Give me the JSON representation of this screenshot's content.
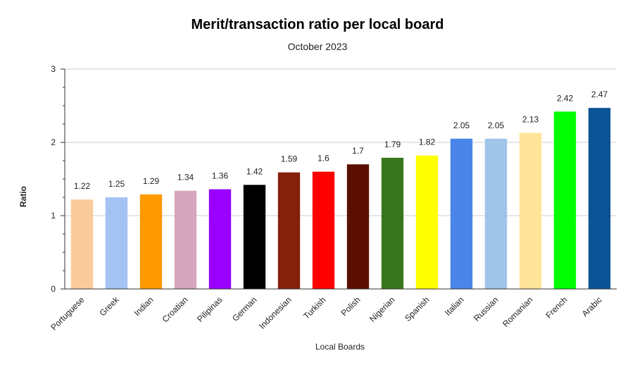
{
  "chart_data": {
    "type": "bar",
    "title": "Merit/transaction ratio per local board",
    "subtitle": "October 2023",
    "xlabel": "Local Boards",
    "ylabel": "Ratio",
    "ylim": [
      0,
      3
    ],
    "yticks": [
      0,
      1,
      2,
      3
    ],
    "grid": true,
    "categories": [
      "Portuguese",
      "Greek",
      "Indian",
      "Croatian",
      "Pilipinas",
      "German",
      "Indonesian",
      "Turkish",
      "Polish",
      "Nigerian",
      "Spanish",
      "Italian",
      "Russian",
      "Romanian",
      "French",
      "Arabic"
    ],
    "values": [
      1.22,
      1.25,
      1.29,
      1.34,
      1.36,
      1.42,
      1.59,
      1.6,
      1.7,
      1.79,
      1.82,
      2.05,
      2.05,
      2.13,
      2.42,
      2.47
    ],
    "data_labels": [
      "1.22",
      "1.25",
      "1.29",
      "1.34",
      "1.36",
      "1.42",
      "1.59",
      "1.6",
      "1.7",
      "1.79",
      "1.82",
      "2.05",
      "2.05",
      "2.13",
      "2.42",
      "2.47"
    ],
    "colors": [
      "#f9cb9c",
      "#a4c2f4",
      "#ff9900",
      "#d5a6bd",
      "#9900ff",
      "#000000",
      "#85200c",
      "#ff0000",
      "#5b0f00",
      "#38761d",
      "#ffff00",
      "#4a86e8",
      "#9fc5e8",
      "#ffe599",
      "#00ff00",
      "#0b5394"
    ]
  }
}
